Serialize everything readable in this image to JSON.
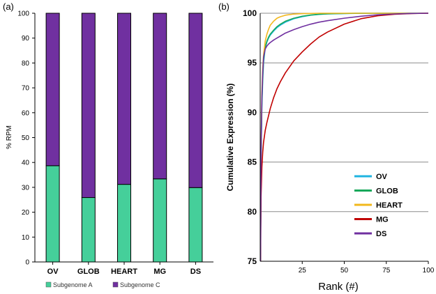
{
  "panels": {
    "a": "(a)",
    "b": "(b)"
  },
  "chart_data": [
    {
      "type": "bar",
      "stacked": true,
      "title": "",
      "ylabel": "% RPM",
      "xlabel": "",
      "categories": [
        "OV",
        "GLOB",
        "HEART",
        "MG",
        "DS"
      ],
      "ylim": [
        0,
        100
      ],
      "yticks": [
        "0",
        "10",
        "20",
        "30",
        "40",
        "50",
        "60",
        "70",
        "80",
        "90",
        "100"
      ],
      "series": [
        {
          "name": "Subgenome A",
          "color": "#45cf9a",
          "values": [
            38.7,
            25.9,
            31.2,
            33.4,
            29.9
          ]
        },
        {
          "name": "Subgenome C",
          "color": "#7030a0",
          "values": [
            61.3,
            74.1,
            68.8,
            66.6,
            70.1
          ]
        }
      ],
      "legend_position": "bottom"
    },
    {
      "type": "line",
      "title": "",
      "ylabel": "Cumulative Expression (%)",
      "xlabel": "Rank (#)",
      "xlim": [
        0,
        100
      ],
      "ylim": [
        75,
        100
      ],
      "xticks": [
        "25",
        "50",
        "75",
        "100"
      ],
      "yticks": [
        "75",
        "80",
        "85",
        "90",
        "95",
        "100"
      ],
      "grid": "horizontal",
      "legend_position": "lower-right",
      "x": [
        0.2,
        0.5,
        1,
        1.5,
        2,
        3,
        4,
        5,
        6,
        8,
        10,
        12,
        15,
        20,
        25,
        30,
        35,
        40,
        50,
        60,
        70,
        80,
        90,
        100
      ],
      "series": [
        {
          "name": "OV",
          "color": "#1fb4e0",
          "values": [
            75,
            85,
            90.5,
            93.2,
            95.0,
            96.5,
            97.1,
            97.5,
            97.8,
            98.2,
            98.55,
            98.8,
            99.1,
            99.45,
            99.65,
            99.8,
            99.88,
            99.93,
            99.97,
            99.99,
            100,
            100,
            100,
            100
          ]
        },
        {
          "name": "GLOB",
          "color": "#17a85a",
          "values": [
            75,
            85.5,
            91.0,
            93.6,
            95.3,
            96.6,
            97.2,
            97.6,
            97.9,
            98.3,
            98.65,
            98.9,
            99.2,
            99.5,
            99.7,
            99.82,
            99.9,
            99.94,
            99.98,
            100,
            100,
            100,
            100,
            100
          ]
        },
        {
          "name": "HEART",
          "color": "#f2b81c",
          "values": [
            75,
            86.5,
            92.0,
            94.5,
            95.8,
            97.2,
            97.9,
            98.4,
            98.8,
            99.2,
            99.5,
            99.65,
            99.8,
            99.92,
            99.96,
            99.98,
            100,
            100,
            100,
            100,
            100,
            100,
            100,
            100
          ]
        },
        {
          "name": "MG",
          "color": "#c00000",
          "values": [
            75,
            81.5,
            84.5,
            86.0,
            87.0,
            88.2,
            89.0,
            89.7,
            90.4,
            91.5,
            92.4,
            93.1,
            94.0,
            95.2,
            96.1,
            96.9,
            97.6,
            98.1,
            98.9,
            99.45,
            99.75,
            99.9,
            99.97,
            100
          ]
        },
        {
          "name": "DS",
          "color": "#7030a0",
          "values": [
            75,
            86.0,
            91.5,
            94.0,
            95.6,
            96.4,
            96.7,
            96.9,
            97.05,
            97.3,
            97.5,
            97.7,
            98.0,
            98.35,
            98.65,
            98.9,
            99.1,
            99.25,
            99.5,
            99.7,
            99.85,
            99.93,
            99.98,
            100
          ]
        }
      ]
    }
  ]
}
